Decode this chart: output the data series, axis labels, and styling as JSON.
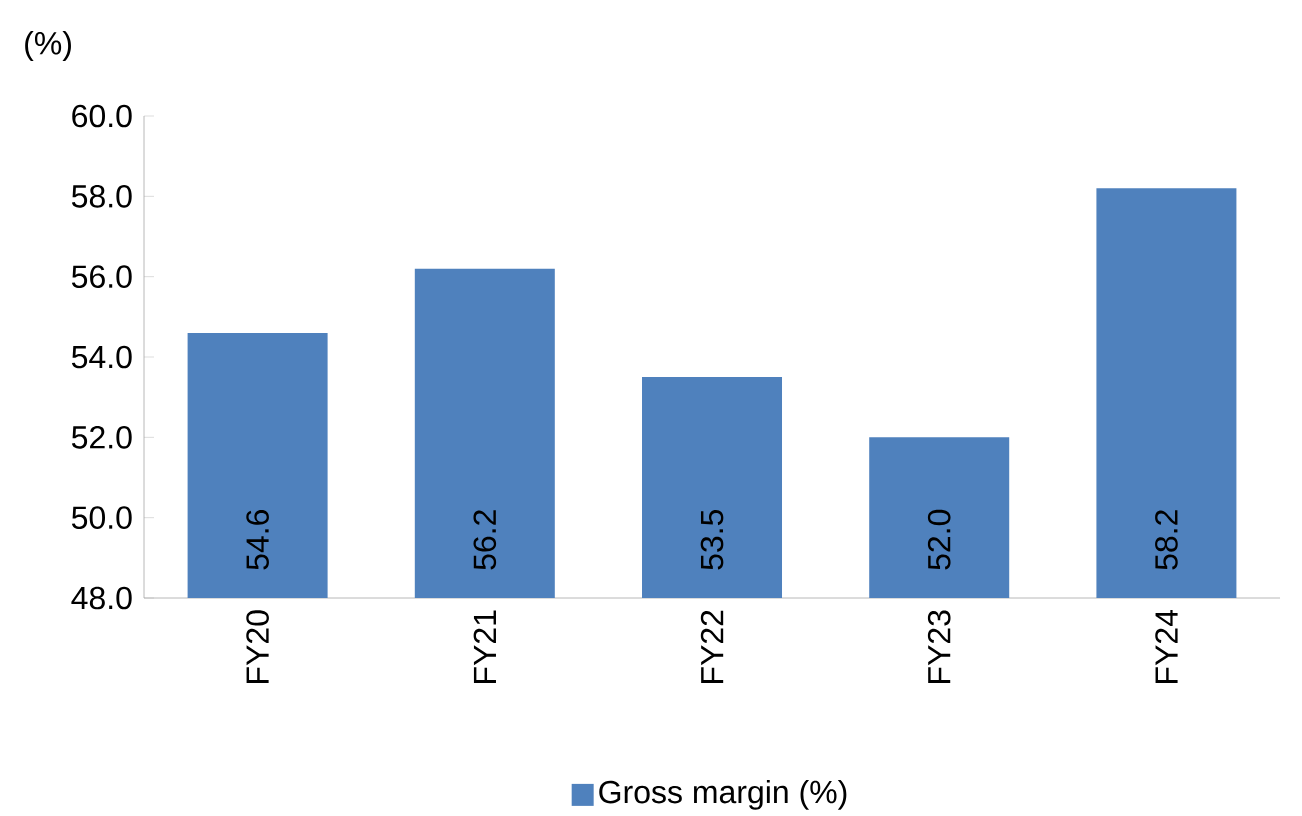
{
  "chart_data": {
    "type": "bar",
    "ylabel": "(%)",
    "categories": [
      "FY20",
      "FY21",
      "FY22",
      "FY23",
      "FY24"
    ],
    "series": [
      {
        "name": "Gross margin (%)",
        "color": "#4f81bd",
        "values": [
          54.6,
          56.2,
          53.5,
          52.0,
          58.2
        ],
        "value_labels": [
          "54.6",
          "56.2",
          "53.5",
          "52.0",
          "58.2"
        ]
      }
    ],
    "ylim": [
      48,
      60
    ],
    "yticks": [
      {
        "value": 48,
        "label": "48.0"
      },
      {
        "value": 50,
        "label": "50.0"
      },
      {
        "value": 52,
        "label": "52.0"
      },
      {
        "value": 54,
        "label": "54.0"
      },
      {
        "value": 56,
        "label": "56.0"
      },
      {
        "value": 58,
        "label": "58.0"
      },
      {
        "value": 60,
        "label": "60.0"
      }
    ],
    "legend": "bottom",
    "grid": false
  }
}
